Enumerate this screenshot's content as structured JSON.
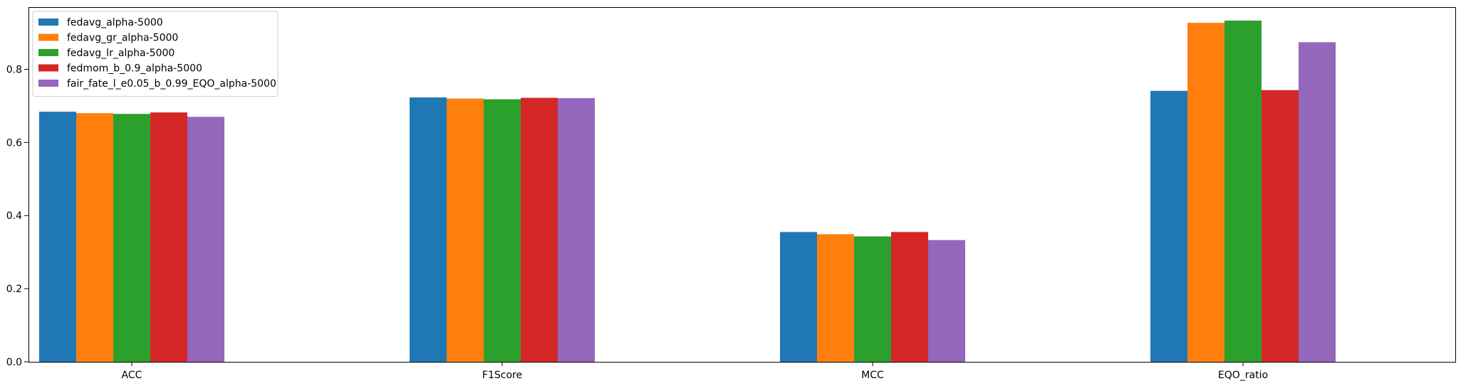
{
  "chart_data": {
    "type": "bar",
    "title": "",
    "xlabel": "",
    "ylabel": "",
    "categories": [
      "ACC",
      "F1Score",
      "MCC",
      "EQO_ratio"
    ],
    "ylim": [
      0,
      0.97
    ],
    "yticks": [
      0.0,
      0.2,
      0.4,
      0.6,
      0.8
    ],
    "ytick_labels": [
      "0.0",
      "0.2",
      "0.4",
      "0.6",
      "0.8"
    ],
    "grid": false,
    "legend_position": "top-left",
    "series": [
      {
        "name": "fedavg_alpha-5000",
        "color": "#1f77b4",
        "values": [
          0.684,
          0.723,
          0.355,
          0.741
        ]
      },
      {
        "name": "fedavg_gr_alpha-5000",
        "color": "#ff7f0e",
        "values": [
          0.68,
          0.72,
          0.349,
          0.927
        ]
      },
      {
        "name": "fedavg_lr_alpha-5000",
        "color": "#2ca02c",
        "values": [
          0.678,
          0.718,
          0.343,
          0.933
        ]
      },
      {
        "name": "fedmom_b_0.9_alpha-5000",
        "color": "#d62728",
        "values": [
          0.682,
          0.722,
          0.355,
          0.743
        ]
      },
      {
        "name": "fair_fate_l_e0.05_b_0.99_EQO_alpha-5000",
        "color": "#9467bd",
        "values": [
          0.67,
          0.721,
          0.333,
          0.874
        ]
      }
    ]
  }
}
